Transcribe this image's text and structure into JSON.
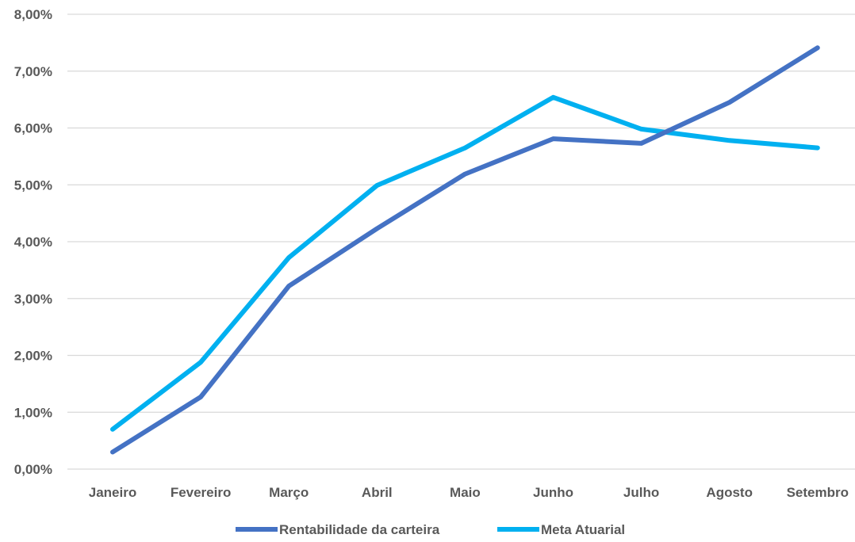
{
  "chart_data": {
    "type": "line",
    "title": "",
    "xlabel": "",
    "ylabel": "",
    "categories": [
      "Janeiro",
      "Fevereiro",
      "Março",
      "Abril",
      "Maio",
      "Junho",
      "Julho",
      "Agosto",
      "Setembro"
    ],
    "y_ticks": [
      "0,00%",
      "1,00%",
      "2,00%",
      "3,00%",
      "4,00%",
      "5,00%",
      "6,00%",
      "7,00%",
      "8,00%"
    ],
    "ylim": [
      0,
      8
    ],
    "y_unit": "%",
    "grid": true,
    "legend_position": "bottom",
    "series": [
      {
        "name": "Rentabilidade da carteira",
        "color": "#4472c4",
        "values": [
          0.3,
          1.27,
          3.22,
          4.23,
          5.19,
          5.81,
          5.73,
          6.45,
          7.41
        ]
      },
      {
        "name": "Meta Atuarial",
        "color": "#00b0f0",
        "values": [
          0.7,
          1.88,
          3.72,
          4.99,
          5.65,
          6.54,
          5.98,
          5.78,
          5.65
        ]
      }
    ]
  }
}
